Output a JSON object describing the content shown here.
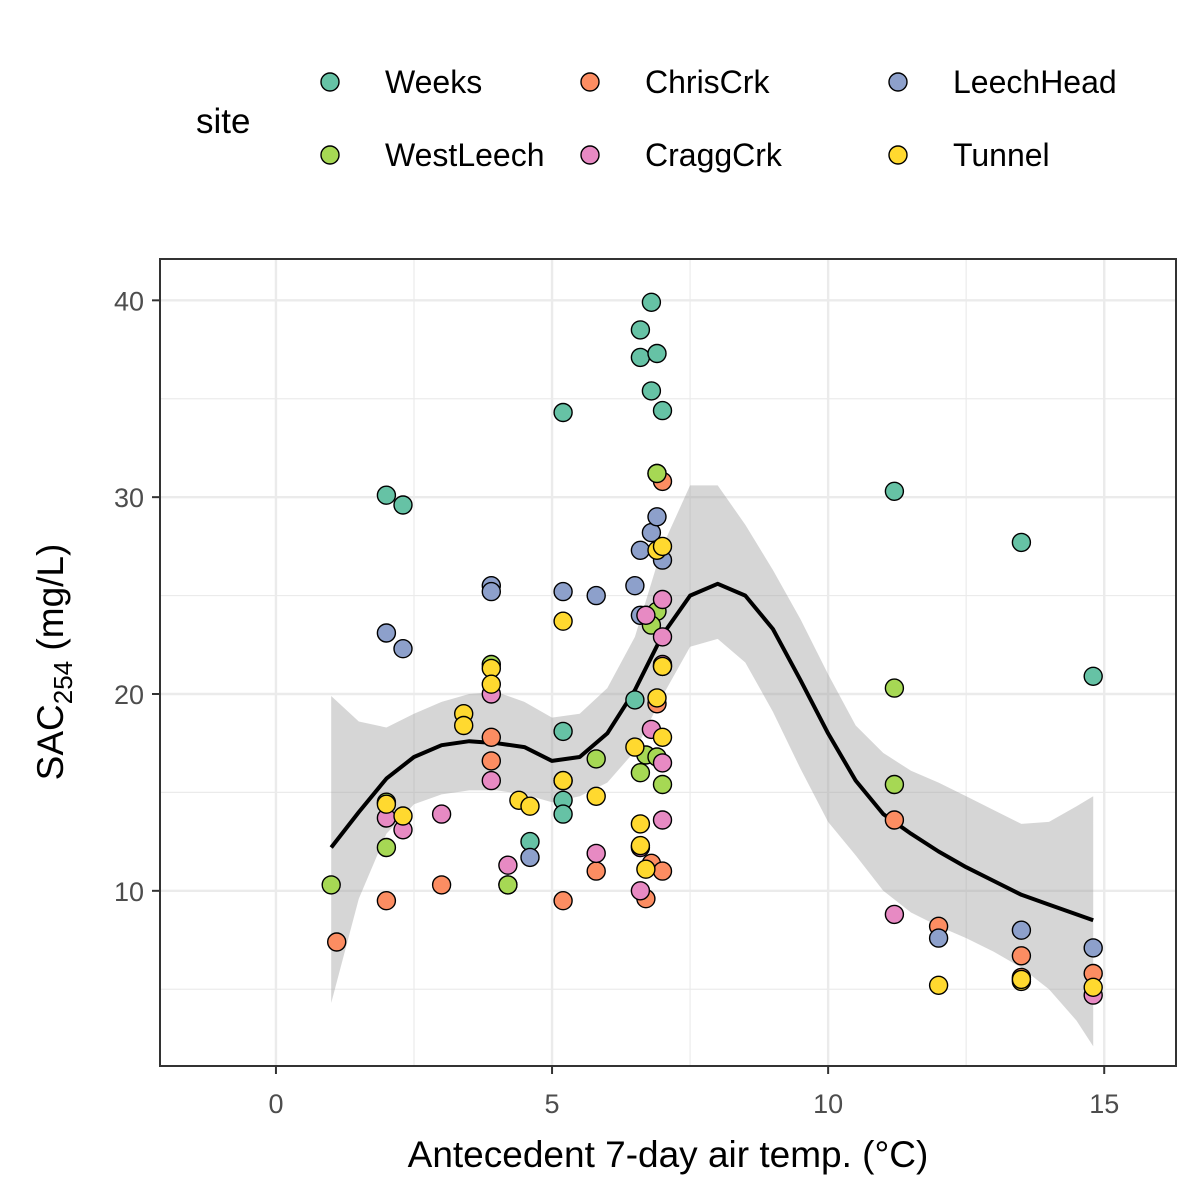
{
  "chart_data": {
    "type": "scatter",
    "xlabel": "Antecedent 7-day air temp. (°C)",
    "ylabel": {
      "main": "SAC",
      "subscript": "254",
      "suffix": " (mg/L)"
    },
    "xlim": [
      -2.1,
      16.3
    ],
    "ylim": [
      1.1,
      42.1
    ],
    "x_ticks": [
      0,
      5,
      10,
      15
    ],
    "y_ticks": [
      10,
      20,
      30,
      40
    ],
    "grid": true,
    "legend": {
      "title": "site",
      "placement": "top",
      "columns": 3
    },
    "series": [
      {
        "name": "Weeks",
        "color": "#66c2a5",
        "points": [
          [
            2.0,
            30.1
          ],
          [
            2.3,
            29.6
          ],
          [
            5.2,
            34.3
          ],
          [
            6.6,
            38.5
          ],
          [
            6.6,
            37.1
          ],
          [
            6.8,
            39.9
          ],
          [
            6.9,
            37.3
          ],
          [
            6.8,
            35.4
          ],
          [
            7.0,
            34.4
          ],
          [
            11.2,
            30.3
          ],
          [
            13.5,
            27.7
          ],
          [
            14.8,
            20.9
          ],
          [
            4.6,
            12.5
          ],
          [
            5.2,
            18.1
          ],
          [
            5.2,
            14.6
          ],
          [
            5.2,
            13.9
          ],
          [
            6.5,
            19.7
          ],
          [
            6.9,
            31.2
          ],
          [
            4.2,
            10.3
          ]
        ]
      },
      {
        "name": "ChrisCrk",
        "color": "#fc8d62",
        "points": [
          [
            1.1,
            7.4
          ],
          [
            2.0,
            9.5
          ],
          [
            3.0,
            10.3
          ],
          [
            3.9,
            17.8
          ],
          [
            3.9,
            16.6
          ],
          [
            5.2,
            9.5
          ],
          [
            5.8,
            11.0
          ],
          [
            6.7,
            9.6
          ],
          [
            6.8,
            11.4
          ],
          [
            7.0,
            11.0
          ],
          [
            6.9,
            19.5
          ],
          [
            7.0,
            30.8
          ],
          [
            6.7,
            24.0
          ],
          [
            11.2,
            13.6
          ],
          [
            12.0,
            8.2
          ],
          [
            13.5,
            6.7
          ],
          [
            13.5,
            5.6
          ],
          [
            14.8,
            5.8
          ]
        ]
      },
      {
        "name": "LeechHead",
        "color": "#8da0cb",
        "points": [
          [
            2.0,
            23.1
          ],
          [
            2.3,
            22.3
          ],
          [
            3.9,
            25.5
          ],
          [
            3.9,
            25.2
          ],
          [
            4.6,
            11.7
          ],
          [
            5.2,
            25.2
          ],
          [
            5.8,
            25.0
          ],
          [
            6.5,
            25.5
          ],
          [
            6.6,
            27.3
          ],
          [
            6.6,
            24.0
          ],
          [
            6.8,
            28.2
          ],
          [
            6.9,
            29.0
          ],
          [
            7.0,
            26.8
          ],
          [
            12.0,
            7.6
          ],
          [
            13.5,
            8.0
          ],
          [
            14.8,
            7.1
          ]
        ]
      },
      {
        "name": "WestLeech",
        "color": "#a6d854",
        "points": [
          [
            1.0,
            10.3
          ],
          [
            2.0,
            12.2
          ],
          [
            2.0,
            14.5
          ],
          [
            3.9,
            21.5
          ],
          [
            4.2,
            10.3
          ],
          [
            5.2,
            15.6
          ],
          [
            5.8,
            16.7
          ],
          [
            6.6,
            16.0
          ],
          [
            6.7,
            16.9
          ],
          [
            6.9,
            16.8
          ],
          [
            6.9,
            24.2
          ],
          [
            7.0,
            21.4
          ],
          [
            7.0,
            15.4
          ],
          [
            6.9,
            31.2
          ],
          [
            6.8,
            23.5
          ],
          [
            11.2,
            20.3
          ],
          [
            11.2,
            15.4
          ]
        ]
      },
      {
        "name": "CraggCrk",
        "color": "#e78ac3",
        "points": [
          [
            2.0,
            13.7
          ],
          [
            2.3,
            13.1
          ],
          [
            3.0,
            13.9
          ],
          [
            3.9,
            20.0
          ],
          [
            3.9,
            15.6
          ],
          [
            4.2,
            11.3
          ],
          [
            5.8,
            11.9
          ],
          [
            6.6,
            10.0
          ],
          [
            6.6,
            12.2
          ],
          [
            6.8,
            18.2
          ],
          [
            7.0,
            24.8
          ],
          [
            7.0,
            22.9
          ],
          [
            7.0,
            16.5
          ],
          [
            7.0,
            13.6
          ],
          [
            7.0,
            21.5
          ],
          [
            6.7,
            24.0
          ],
          [
            11.2,
            8.8
          ],
          [
            14.8,
            4.7
          ]
        ]
      },
      {
        "name": "Tunnel",
        "color": "#ffd92f",
        "points": [
          [
            2.0,
            14.4
          ],
          [
            2.3,
            13.8
          ],
          [
            3.4,
            19.0
          ],
          [
            3.4,
            18.4
          ],
          [
            3.9,
            21.3
          ],
          [
            3.9,
            20.5
          ],
          [
            4.4,
            14.6
          ],
          [
            4.6,
            14.3
          ],
          [
            5.2,
            23.7
          ],
          [
            5.2,
            15.6
          ],
          [
            5.8,
            14.8
          ],
          [
            6.5,
            17.3
          ],
          [
            6.6,
            13.4
          ],
          [
            6.6,
            12.3
          ],
          [
            6.7,
            11.1
          ],
          [
            6.9,
            19.8
          ],
          [
            6.9,
            27.3
          ],
          [
            7.0,
            21.4
          ],
          [
            7.0,
            17.8
          ],
          [
            7.0,
            27.5
          ],
          [
            12.0,
            5.2
          ],
          [
            13.5,
            5.4
          ],
          [
            13.5,
            5.5
          ],
          [
            14.8,
            5.1
          ]
        ]
      }
    ],
    "smooth_curve": {
      "x": [
        1.0,
        1.5,
        2.0,
        2.5,
        3.0,
        3.5,
        4.0,
        4.5,
        5.0,
        5.5,
        6.0,
        6.5,
        7.0,
        7.5,
        8.0,
        8.5,
        9.0,
        9.5,
        10.0,
        10.5,
        11.0,
        11.5,
        12.0,
        12.5,
        13.0,
        13.5,
        14.0,
        14.5,
        14.8
      ],
      "y": [
        12.2,
        14.0,
        15.7,
        16.8,
        17.4,
        17.6,
        17.5,
        17.3,
        16.6,
        16.8,
        18.0,
        20.2,
        23.0,
        25.0,
        25.6,
        25.0,
        23.3,
        20.7,
        18.0,
        15.6,
        13.9,
        12.9,
        12.0,
        11.2,
        10.5,
        9.8,
        9.3,
        8.8,
        8.5
      ],
      "lower": [
        4.3,
        9.6,
        12.9,
        14.4,
        14.9,
        15.1,
        15.1,
        14.9,
        14.5,
        14.8,
        15.5,
        17.1,
        19.9,
        22.4,
        22.8,
        21.6,
        19.1,
        16.2,
        13.5,
        11.8,
        10.0,
        8.9,
        8.2,
        7.6,
        6.9,
        6.1,
        5.0,
        3.4,
        2.1
      ],
      "upper": [
        19.9,
        18.6,
        18.3,
        19.0,
        19.6,
        20.0,
        20.1,
        19.6,
        18.8,
        19.0,
        20.3,
        22.9,
        27.5,
        30.6,
        30.6,
        28.6,
        26.3,
        23.8,
        21.0,
        18.4,
        17.0,
        16.1,
        15.5,
        14.8,
        14.1,
        13.4,
        13.5,
        14.3,
        14.8
      ]
    }
  }
}
